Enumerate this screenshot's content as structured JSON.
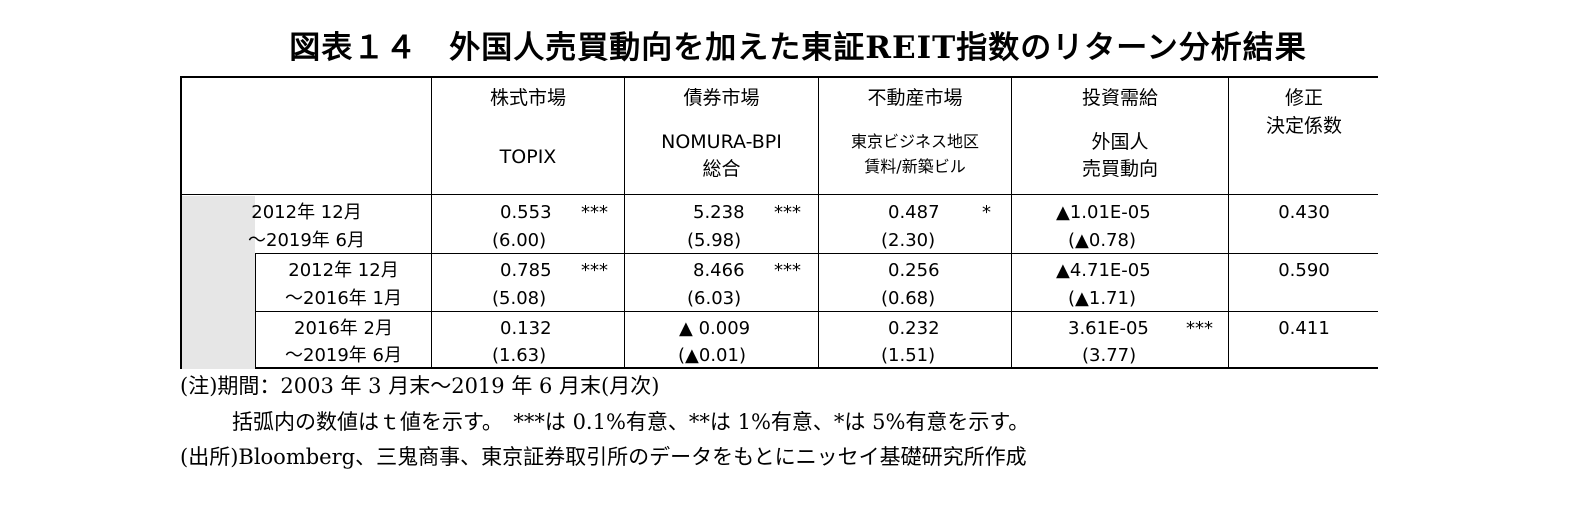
{
  "title": "図表１４　外国人売買動向を加えた東証REIT指数のリターン分析結果",
  "columns": [
    {
      "line1": "株式市場",
      "line2": "TOPIX",
      "line3": ""
    },
    {
      "line1": "債券市場",
      "line2": "NOMURA-BPI",
      "line3": "総合"
    },
    {
      "line1": "不動産市場",
      "line2": "東京ビジネス地区",
      "line3": "賃料/新築ビル"
    },
    {
      "line1": "投資需給",
      "line2": "外国人",
      "line3": "売買動向"
    },
    {
      "line1": "修正",
      "line2": "決定係数",
      "line3": ""
    }
  ],
  "rows": [
    {
      "period_line1": "2012年 12月",
      "period_line2": "～2019年 6月",
      "topix": {
        "value": "0.553",
        "sig": "***",
        "t": "(6.00)"
      },
      "bond": {
        "value": "5.238",
        "sig": "***",
        "t": "(5.98)"
      },
      "realestate": {
        "value": "0.487",
        "sig": "*",
        "t": "(2.30)"
      },
      "foreign": {
        "value": "▲1.01E-05",
        "sig": "",
        "t": "(▲0.78)"
      },
      "r2": "0.430"
    },
    {
      "period_line1": "2012年 12月",
      "period_line2": "～2016年 1月",
      "topix": {
        "value": "0.785",
        "sig": "***",
        "t": "(5.08)"
      },
      "bond": {
        "value": "8.466",
        "sig": "***",
        "t": "(6.03)"
      },
      "realestate": {
        "value": "0.256",
        "sig": "",
        "t": "(0.68)"
      },
      "foreign": {
        "value": "▲4.71E-05",
        "sig": "",
        "t": "(▲1.71)"
      },
      "r2": "0.590"
    },
    {
      "period_line1": "2016年 2月",
      "period_line2": "～2019年 6月",
      "topix": {
        "value": "0.132",
        "sig": "",
        "t": "(1.63)"
      },
      "bond": {
        "value": "▲ 0.009",
        "sig": "",
        "t": "(▲0.01)"
      },
      "realestate": {
        "value": "0.232",
        "sig": "",
        "t": "(1.51)"
      },
      "foreign": {
        "value": "3.61E-05",
        "sig": "***",
        "t": "(3.77)"
      },
      "r2": "0.411"
    }
  ],
  "notes": {
    "line1": "(注)期間：2003 年 3 月末～2019 年 6 月末(月次)",
    "line2": "括弧内の数値はｔ値を示す。　***は 0.1%有意、**は 1%有意、*は 5%有意を示す。",
    "line3": "(出所)Bloomberg、三鬼商事、東京証券取引所のデータをもとにニッセイ基礎研究所作成"
  }
}
